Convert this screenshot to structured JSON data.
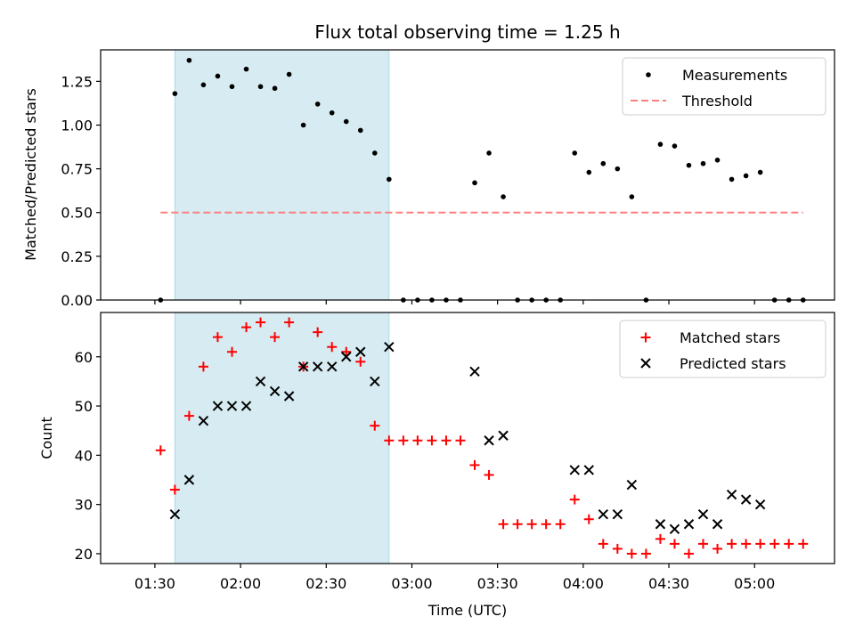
{
  "chart_data": [
    {
      "type": "scatter",
      "title": "Flux total observing time = 1.25 h",
      "xlabel": "",
      "ylabel": "Matched/Predicted stars",
      "x_range_minutes": [
        "01:11",
        "05:28"
      ],
      "ylim": [
        0.0,
        1.43
      ],
      "y_ticks": [
        0.0,
        0.25,
        0.5,
        0.75,
        1.0,
        1.25
      ],
      "y_tick_labels": [
        "0.00",
        "0.25",
        "0.50",
        "0.75",
        "1.00",
        "1.25"
      ],
      "x_ticks": [
        "01:30",
        "02:00",
        "02:30",
        "03:00",
        "03:30",
        "04:00",
        "04:30",
        "05:00"
      ],
      "shaded_span": {
        "start": "01:37",
        "end": "02:52",
        "color": "#add8e6"
      },
      "threshold": {
        "name": "Threshold",
        "value": 0.5,
        "start": "01:32",
        "end": "05:17",
        "color": "#ff7f7f"
      },
      "legend": {
        "position": "top-right",
        "entries": [
          "Measurements",
          "Threshold"
        ]
      },
      "series": [
        {
          "name": "Measurements",
          "color": "#000000",
          "marker": "dot",
          "x": [
            "01:32",
            "01:37",
            "01:42",
            "01:47",
            "01:52",
            "01:57",
            "02:02",
            "02:07",
            "02:12",
            "02:17",
            "02:22",
            "02:27",
            "02:32",
            "02:37",
            "02:42",
            "02:47",
            "02:52",
            "02:57",
            "03:02",
            "03:07",
            "03:12",
            "03:17",
            "03:22",
            "03:27",
            "03:32",
            "03:37",
            "03:42",
            "03:47",
            "03:52",
            "03:57",
            "04:02",
            "04:07",
            "04:12",
            "04:17",
            "04:22",
            "04:27",
            "04:32",
            "04:37",
            "04:42",
            "04:47",
            "04:52",
            "04:57",
            "05:02",
            "05:07",
            "05:12",
            "05:17"
          ],
          "y": [
            0.0,
            1.18,
            1.37,
            1.23,
            1.28,
            1.22,
            1.32,
            1.22,
            1.21,
            1.29,
            1.0,
            1.12,
            1.07,
            1.02,
            0.97,
            0.84,
            0.69,
            0.0,
            0.0,
            0.0,
            0.0,
            0.0,
            0.67,
            0.84,
            0.59,
            0.0,
            0.0,
            0.0,
            0.0,
            0.84,
            0.73,
            0.78,
            0.75,
            0.59,
            0.0,
            0.89,
            0.88,
            0.77,
            0.78,
            0.8,
            0.69,
            0.71,
            0.73,
            0.0,
            0.0,
            0.0
          ]
        }
      ]
    },
    {
      "type": "scatter",
      "title": "",
      "xlabel": "Time (UTC)",
      "ylabel": "Count",
      "x_range_minutes": [
        "01:11",
        "05:28"
      ],
      "ylim": [
        18,
        69
      ],
      "y_ticks": [
        20,
        30,
        40,
        50,
        60
      ],
      "y_tick_labels": [
        "20",
        "30",
        "40",
        "50",
        "60"
      ],
      "x_ticks": [
        "01:30",
        "02:00",
        "02:30",
        "03:00",
        "03:30",
        "04:00",
        "04:30",
        "05:00"
      ],
      "shaded_span": {
        "start": "01:37",
        "end": "02:52",
        "color": "#add8e6"
      },
      "legend": {
        "position": "top-right",
        "entries": [
          "Matched stars",
          "Predicted stars"
        ]
      },
      "series": [
        {
          "name": "Matched stars",
          "color": "#ff0000",
          "marker": "plus",
          "x": [
            "01:32",
            "01:37",
            "01:42",
            "01:47",
            "01:52",
            "01:57",
            "02:02",
            "02:07",
            "02:12",
            "02:17",
            "02:22",
            "02:27",
            "02:32",
            "02:37",
            "02:42",
            "02:47",
            "02:52",
            "02:57",
            "03:02",
            "03:07",
            "03:12",
            "03:17",
            "03:22",
            "03:27",
            "03:32",
            "03:37",
            "03:42",
            "03:47",
            "03:52",
            "03:57",
            "04:02",
            "04:07",
            "04:12",
            "04:17",
            "04:22",
            "04:27",
            "04:32",
            "04:37",
            "04:42",
            "04:47",
            "04:52",
            "04:57",
            "05:02",
            "05:07",
            "05:12",
            "05:17"
          ],
          "y": [
            41,
            33,
            48,
            58,
            64,
            61,
            66,
            67,
            64,
            67,
            58,
            65,
            62,
            61,
            59,
            46,
            43,
            43,
            43,
            43,
            43,
            43,
            38,
            36,
            26,
            26,
            26,
            26,
            26,
            31,
            27,
            22,
            21,
            20,
            20,
            23,
            22,
            20,
            22,
            21,
            22,
            22,
            22,
            22,
            22,
            22
          ]
        },
        {
          "name": "Predicted stars",
          "color": "#000000",
          "marker": "x",
          "x": [
            "01:37",
            "01:42",
            "01:47",
            "01:52",
            "01:57",
            "02:02",
            "02:07",
            "02:12",
            "02:17",
            "02:22",
            "02:27",
            "02:32",
            "02:37",
            "02:42",
            "02:47",
            "02:52",
            "03:22",
            "03:27",
            "03:32",
            "03:57",
            "04:02",
            "04:07",
            "04:12",
            "04:17",
            "04:27",
            "04:32",
            "04:37",
            "04:42",
            "04:47",
            "04:52",
            "04:57",
            "05:02"
          ],
          "y": [
            28,
            35,
            47,
            50,
            50,
            50,
            55,
            53,
            52,
            58,
            58,
            58,
            60,
            61,
            55,
            62,
            57,
            43,
            44,
            37,
            37,
            28,
            28,
            34,
            26,
            25,
            26,
            28,
            26,
            32,
            31,
            30
          ]
        }
      ]
    }
  ]
}
